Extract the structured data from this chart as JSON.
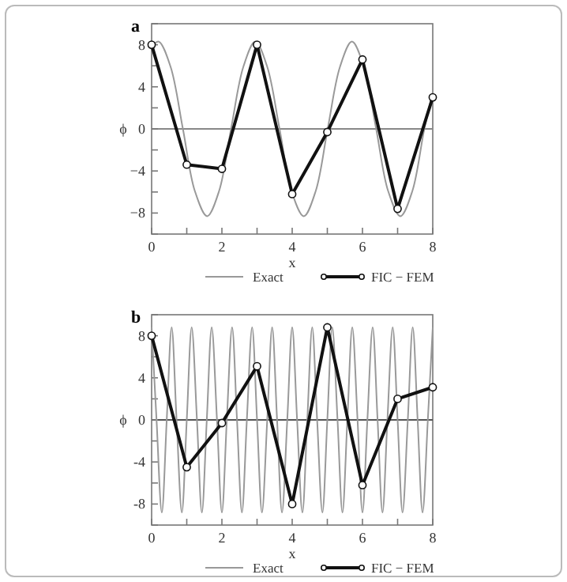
{
  "chart_data": [
    {
      "type": "line",
      "title": "a",
      "xlabel": "x",
      "ylabel": "ϕ",
      "xlim": [
        0,
        8
      ],
      "ylim": [
        -10,
        10
      ],
      "xticks": [
        0,
        {
          "value": 1,
          "label": null
        },
        2,
        {
          "value": 3,
          "label": null
        },
        4,
        {
          "value": 5,
          "label": null
        },
        6,
        {
          "value": 7,
          "label": null
        },
        8
      ],
      "yticks": [
        {
          "value": -10,
          "label": null
        },
        {
          "value": -8,
          "label": "−8"
        },
        {
          "value": -6,
          "label": null
        },
        {
          "value": -4,
          "label": "−4"
        },
        {
          "value": -2,
          "label": null
        },
        0,
        {
          "value": 2,
          "label": null
        },
        4,
        {
          "value": 6,
          "label": null
        },
        8,
        {
          "value": 10,
          "label": null
        }
      ],
      "ref_lines": [
        {
          "axis": "y",
          "value": 0,
          "color": "#888888"
        }
      ],
      "legend": "bottom",
      "grid": false,
      "series": [
        {
          "name": "Exact",
          "color": "#999999",
          "marker": "none",
          "x": [
            0,
            0.2,
            0.54,
            0.89,
            1.23,
            1.58,
            1.92,
            2.26,
            2.61,
            2.95,
            3.29,
            3.64,
            3.98,
            4.33,
            4.67,
            5.01,
            5.36,
            5.7,
            6.04,
            6.39,
            6.73,
            7.08,
            7.42,
            7.76,
            8
          ],
          "values": [
            7.8,
            8.3,
            5.9,
            0,
            -5.9,
            -8.3,
            -5.9,
            0,
            5.9,
            8.3,
            5.9,
            0,
            -5.9,
            -8.3,
            -5.9,
            0,
            5.9,
            8.3,
            5.9,
            0,
            -5.9,
            -8.3,
            -5.9,
            0,
            3.5
          ]
        },
        {
          "name": "FIC − FEM",
          "color": "#111111",
          "marker": "circle",
          "x": [
            0,
            1,
            2,
            3,
            4,
            5,
            6,
            7,
            8
          ],
          "values": [
            8,
            -3.4,
            -3.8,
            8,
            -6.2,
            -0.3,
            6.6,
            -7.6,
            3
          ]
        }
      ]
    },
    {
      "type": "line",
      "title": "b",
      "xlabel": "x",
      "ylabel": "ϕ",
      "xlim": [
        0,
        8
      ],
      "ylim": [
        -10,
        10
      ],
      "xticks": [
        0,
        {
          "value": 1,
          "label": null
        },
        2,
        {
          "value": 3,
          "label": null
        },
        4,
        {
          "value": 5,
          "label": null
        },
        6,
        {
          "value": 7,
          "label": null
        },
        8
      ],
      "yticks": [
        {
          "value": -10,
          "label": null
        },
        -8,
        {
          "value": -6,
          "label": null
        },
        -4,
        {
          "value": -2,
          "label": null
        },
        0,
        {
          "value": 2,
          "label": null
        },
        4,
        {
          "value": 6,
          "label": null
        },
        8,
        {
          "value": 10,
          "label": null
        }
      ],
      "ref_lines": [
        {
          "axis": "y",
          "value": 0,
          "color": "#555555"
        }
      ],
      "legend": "bottom",
      "grid": false,
      "series": [
        {
          "name": "Exact",
          "color": "#999999",
          "marker": "none",
          "x": [
            0,
            0.14,
            0.29,
            0.43,
            0.57,
            0.71,
            0.86,
            1,
            1.14,
            1.29,
            1.43,
            1.57,
            1.71,
            1.86,
            2,
            2.14,
            2.29,
            2.43,
            2.57,
            2.71,
            2.86,
            3,
            3.14,
            3.29,
            3.43,
            3.57,
            3.71,
            3.86,
            4,
            4.14,
            4.29,
            4.43,
            4.57,
            4.71,
            4.86,
            5,
            5.14,
            5.29,
            5.43,
            5.57,
            5.71,
            5.86,
            6,
            6.14,
            6.29,
            6.43,
            6.57,
            6.71,
            6.86,
            7,
            7.14,
            7.29,
            7.43,
            7.57,
            7.71,
            7.86,
            8
          ],
          "values": [
            8.8,
            0,
            -8.8,
            0,
            8.8,
            0,
            -8.8,
            0,
            8.8,
            0,
            -8.8,
            0,
            8.8,
            0,
            -8.8,
            0,
            8.8,
            0,
            -8.8,
            0,
            8.8,
            0,
            -8.8,
            0,
            8.8,
            0,
            -8.8,
            0,
            8.8,
            0,
            -8.8,
            0,
            8.8,
            0,
            -8.8,
            0,
            8.8,
            0,
            -8.8,
            0,
            8.8,
            0,
            -8.8,
            0,
            8.8,
            0,
            -8.8,
            0,
            8.8,
            0,
            -8.8,
            0,
            8.8,
            0,
            -8.8,
            0,
            8.8
          ]
        },
        {
          "name": "FIC − FEM",
          "color": "#111111",
          "marker": "circle",
          "x": [
            0,
            1,
            2,
            3,
            4,
            5,
            6,
            7,
            8
          ],
          "values": [
            8,
            -4.5,
            -0.3,
            5.1,
            -8,
            8.8,
            -6.2,
            2,
            3.1
          ]
        }
      ]
    }
  ]
}
